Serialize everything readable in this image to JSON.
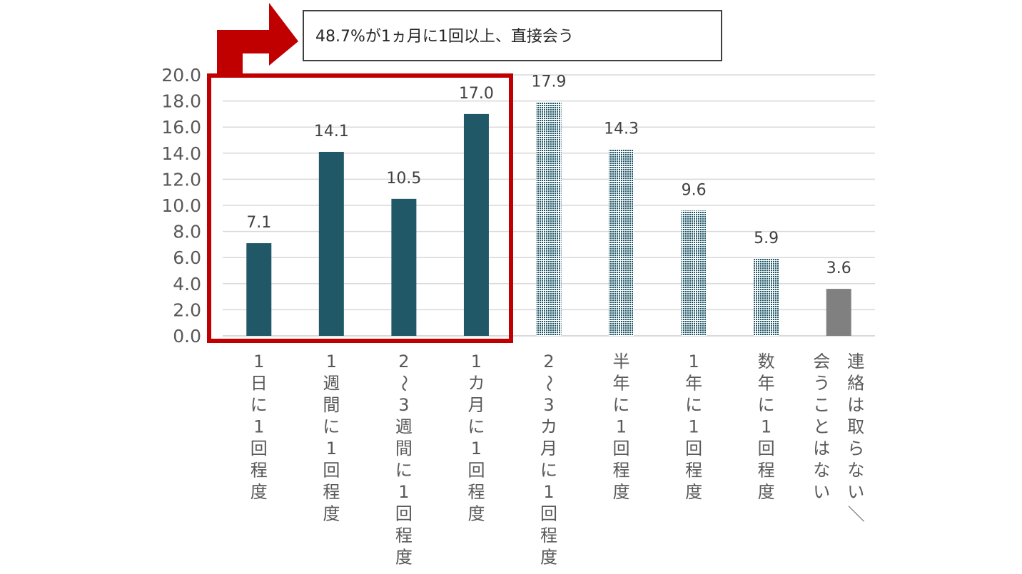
{
  "callout": {
    "text": "48.7%が1ヵ月に1回以上、直接会う"
  },
  "colors": {
    "solid_bar": "#215868",
    "pattern_bar": "#215868",
    "gray_bar": "#808080",
    "highlight_box": "#c00000",
    "arrow": "#c00000",
    "grid": "#d9d9d9"
  },
  "chart_data": {
    "type": "bar",
    "title": "",
    "xlabel": "",
    "ylabel": "",
    "ylim": [
      0,
      20
    ],
    "yticks": [
      "0.0",
      "2.0",
      "4.0",
      "6.0",
      "8.0",
      "10.0",
      "12.0",
      "14.0",
      "16.0",
      "18.0",
      "20.0"
    ],
    "grid": true,
    "categories": [
      "1日に1回程度",
      "1週間に1回程度",
      "2~3週間に1回程度",
      "1カ月に1回程度",
      "2~3カ月に1回程度",
      "半年に1回程度",
      "1年に1回程度",
      "数年に1回程度",
      "連絡は取らない/会うことはない"
    ],
    "category_lines": [
      [
        "1日に1回程度"
      ],
      [
        "1週間に1回程度"
      ],
      [
        "2~3週間に1回程度"
      ],
      [
        "1カ月に1回程度"
      ],
      [
        "2~3カ月に1回程度"
      ],
      [
        "半年に1回程度"
      ],
      [
        "1年に1回程度"
      ],
      [
        "数年に1回程度"
      ],
      [
        "連絡は取らない/",
        "会うことはない"
      ]
    ],
    "values": [
      7.1,
      14.1,
      10.5,
      17.0,
      17.9,
      14.3,
      9.6,
      5.9,
      3.6
    ],
    "data_labels": [
      "7.1",
      "14.1",
      "10.5",
      "17.0",
      "17.9",
      "14.3",
      "9.6",
      "5.9",
      "3.6"
    ],
    "bar_styles": [
      "solid",
      "solid",
      "solid",
      "solid",
      "pattern",
      "pattern",
      "pattern",
      "pattern",
      "gray"
    ],
    "highlighted_categories": [
      0,
      1,
      2,
      3
    ]
  }
}
